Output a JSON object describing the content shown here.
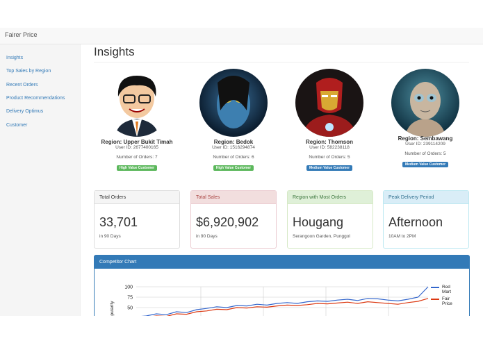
{
  "navbar": {
    "brand": "Fairer Price"
  },
  "sidebar": {
    "links": [
      "Insights",
      "Top Sales by Region",
      "Recent Orders",
      "Product Recommendations",
      "Delivery Optimus",
      "Customer"
    ]
  },
  "page": {
    "title": "Insights"
  },
  "profiles": [
    {
      "region": "Region: Upper Bukit Timah",
      "user_id": "User ID: 2677400165",
      "orders": "Number of Orders: 7",
      "badge": "High Value Customer"
    },
    {
      "region": "Region: Bedok",
      "user_id": "User ID: 1516294874",
      "orders": "Number of Orders: 6",
      "badge": "High Value Customer"
    },
    {
      "region": "Region: Thomson",
      "user_id": "User ID: 582238118",
      "orders": "Number of Orders: 5",
      "badge": "Medium Value Customer"
    },
    {
      "region": "Region: Sembawang",
      "user_id": "User ID: 239114209",
      "orders": "Number of Orders: 5",
      "badge": "Medium Value Customer"
    }
  ],
  "cards": [
    {
      "title": "Total Orders",
      "value": "33,701",
      "note": "in 90 Days"
    },
    {
      "title": "Total Sales",
      "value": "$6,920,902",
      "note": "in 90 Days"
    },
    {
      "title": "Region with Most Orders",
      "value": "Hougang",
      "note": "Serangoon Garden, Punggol"
    },
    {
      "title": "Peak Delivery Period",
      "value": "Afternoon",
      "note": "10AM to 2PM"
    }
  ],
  "chart_data": {
    "type": "line",
    "title": "Competitor Chart",
    "y_label": "Popularity",
    "series": [
      {
        "name": "Red Mart",
        "color": "#3366cc",
        "values": [
          28,
          30,
          35,
          33,
          40,
          38,
          45,
          48,
          52,
          50,
          55,
          54,
          58,
          56,
          60,
          62,
          60,
          64,
          66,
          65,
          68,
          70,
          67,
          72,
          71,
          68,
          66,
          70,
          75,
          100
        ]
      },
      {
        "name": "Fair Price",
        "color": "#dc3912",
        "values": [
          25,
          27,
          30,
          29,
          35,
          34,
          40,
          42,
          46,
          45,
          50,
          49,
          52,
          51,
          54,
          56,
          55,
          57,
          60,
          59,
          61,
          63,
          60,
          64,
          62,
          60,
          58,
          62,
          65,
          72
        ]
      }
    ],
    "ylim": [
      25,
      100
    ],
    "yticks": [
      50,
      75,
      100
    ],
    "grid": true
  }
}
